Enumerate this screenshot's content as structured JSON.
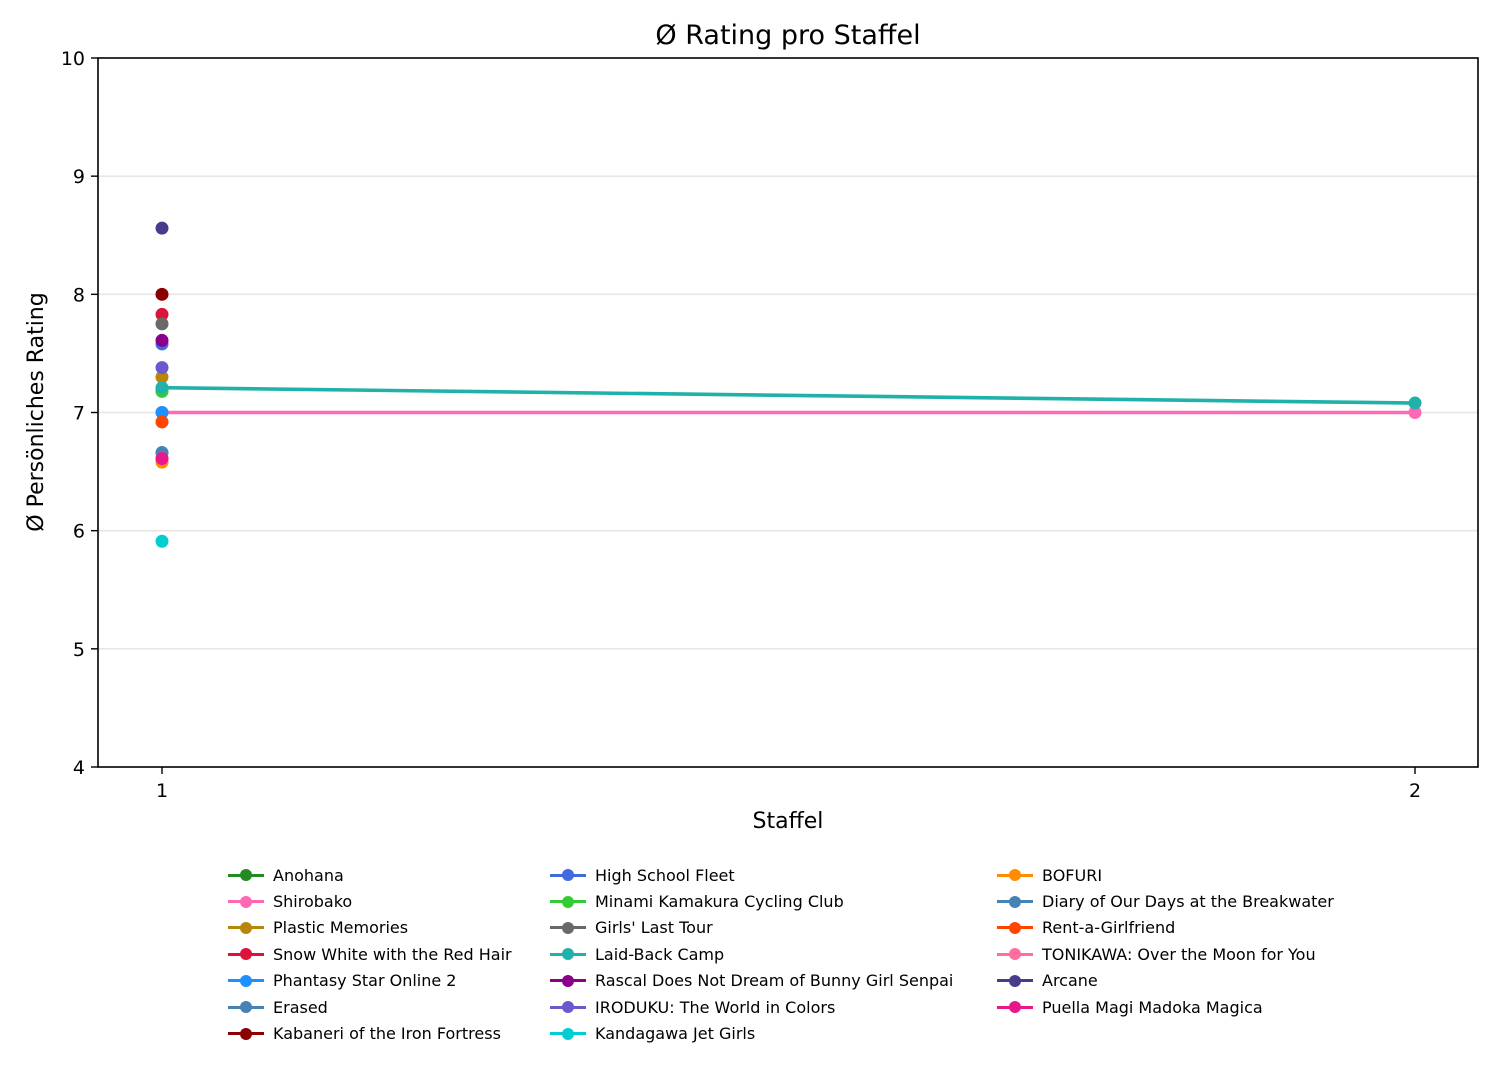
{
  "chart_data": {
    "type": "line",
    "title": "Ø Rating pro Staffel",
    "xlabel": "Staffel",
    "ylabel": "Ø Persönliches Rating",
    "xlim": [
      0.95,
      2.05
    ],
    "ylim": [
      4,
      10
    ],
    "xticks": [
      1,
      2
    ],
    "yticks": [
      4,
      5,
      6,
      7,
      8,
      9,
      10
    ],
    "grid": "y",
    "legend_position": "bottom-center, 3 columns",
    "series": [
      {
        "name": "Anohana",
        "color": "#228B22",
        "x": [
          1
        ],
        "y": [
          7.18
        ]
      },
      {
        "name": "Shirobako",
        "color": "#FF69B4",
        "x": [
          1,
          2
        ],
        "y": [
          7.0,
          7.0
        ]
      },
      {
        "name": "Plastic Memories",
        "color": "#B8860B",
        "x": [
          1
        ],
        "y": [
          7.3
        ]
      },
      {
        "name": "Snow White with the Red Hair",
        "color": "#DC143C",
        "x": [
          1
        ],
        "y": [
          7.83
        ]
      },
      {
        "name": "Phantasy Star Online 2",
        "color": "#1E90FF",
        "x": [
          1
        ],
        "y": [
          7.0
        ]
      },
      {
        "name": "Erased",
        "color": "#4682B4",
        "x": [
          1
        ],
        "y": [
          6.66
        ]
      },
      {
        "name": "Kabaneri of the Iron Fortress",
        "color": "#8B0000",
        "x": [
          1
        ],
        "y": [
          8.0
        ]
      },
      {
        "name": "High School Fleet",
        "color": "#4169E1",
        "x": [
          1
        ],
        "y": [
          7.58
        ]
      },
      {
        "name": "Minami Kamakura Cycling Club",
        "color": "#32CD32",
        "x": [
          1
        ],
        "y": [
          7.18
        ]
      },
      {
        "name": "Girls' Last Tour",
        "color": "#696969",
        "x": [
          1
        ],
        "y": [
          7.75
        ]
      },
      {
        "name": "Laid-Back Camp",
        "color": "#20B2AA",
        "x": [
          1,
          2
        ],
        "y": [
          7.21,
          7.08
        ]
      },
      {
        "name": "Rascal Does Not Dream of Bunny Girl Senpai",
        "color": "#8B008B",
        "x": [
          1
        ],
        "y": [
          7.61
        ]
      },
      {
        "name": "IRODUKU: The World in Colors",
        "color": "#6A5ACD",
        "x": [
          1
        ],
        "y": [
          7.38
        ]
      },
      {
        "name": "Kandagawa Jet Girls",
        "color": "#00CED1",
        "x": [
          1
        ],
        "y": [
          5.91
        ]
      },
      {
        "name": "BOFURI",
        "color": "#FF8C00",
        "x": [
          1
        ],
        "y": [
          6.58
        ]
      },
      {
        "name": "Diary of Our Days at the Breakwater",
        "color": "#4682B4",
        "x": [
          1
        ],
        "y": [
          6.66
        ]
      },
      {
        "name": "Rent-a-Girlfriend",
        "color": "#FF4500",
        "x": [
          1
        ],
        "y": [
          6.92
        ]
      },
      {
        "name": "TONIKAWA: Over the Moon for You",
        "color": "#FF6EA0",
        "x": [
          1
        ],
        "y": [
          6.61
        ]
      },
      {
        "name": "Arcane",
        "color": "#483D8B",
        "x": [
          1
        ],
        "y": [
          8.56
        ]
      },
      {
        "name": "Puella Magi Madoka Magica",
        "color": "#E8188C",
        "x": [
          1
        ],
        "y": [
          6.61
        ]
      }
    ]
  },
  "legend": {
    "columns": [
      [
        0,
        1,
        2,
        3,
        4,
        5,
        6
      ],
      [
        7,
        8,
        9,
        10,
        11,
        12,
        13
      ],
      [
        14,
        15,
        16,
        17,
        18,
        19
      ]
    ]
  }
}
